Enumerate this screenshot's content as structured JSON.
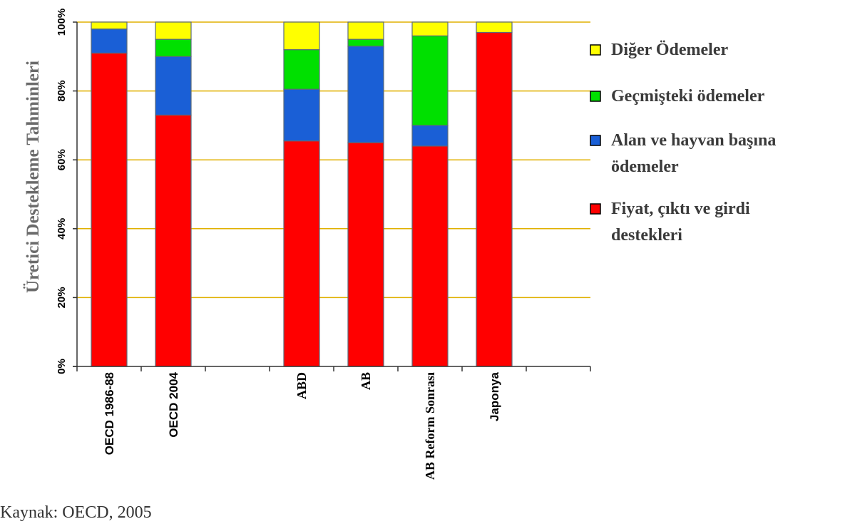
{
  "chart_data": {
    "type": "bar",
    "stacked": true,
    "title": "",
    "ylabel": "Üretici Destekleme Tahminleri",
    "xlabel": "",
    "ylim": [
      0,
      100
    ],
    "yticks": [
      "0%",
      "20%",
      "40%",
      "60%",
      "80%",
      "100%"
    ],
    "grid": true,
    "legend_position": "right",
    "categories": [
      "OECD 1986-88",
      "OECD 2004",
      "",
      "ABD",
      "AB",
      "AB Reform Sonrası",
      "Japonya",
      ""
    ],
    "series": [
      {
        "name": "Fiyat, çıktı ve girdi destekleri",
        "color": "#ff0000",
        "values": [
          91,
          73,
          null,
          65.5,
          65,
          64,
          97,
          null
        ]
      },
      {
        "name": "Alan ve hayvan başına ödemeler",
        "color": "#1a5fd6",
        "values": [
          7,
          17,
          null,
          15,
          28,
          6,
          0,
          null
        ]
      },
      {
        "name": "Geçmişteki ödemeler",
        "color": "#00e000",
        "values": [
          0,
          5,
          null,
          11.5,
          2,
          26,
          0,
          null
        ]
      },
      {
        "name": "Diğer Ödemeler",
        "color": "#ffff00",
        "values": [
          2,
          5,
          null,
          8,
          5,
          4,
          3,
          null
        ]
      }
    ],
    "legend": [
      {
        "lines": [
          "Diğer Ödemeler"
        ],
        "color": "#ffff00"
      },
      {
        "lines": [
          "Geçmişteki ödemeler"
        ],
        "color": "#00e000"
      },
      {
        "lines": [
          "Alan ve hayvan başına",
          "ödemeler"
        ],
        "color": "#1a5fd6"
      },
      {
        "lines": [
          "Fiyat, çıktı ve girdi",
          "destekleri"
        ],
        "color": "#ff0000"
      }
    ],
    "colors": {
      "grid": "#e0b000",
      "axis": "#333333",
      "bar_outline": "#5a6a7a"
    }
  },
  "source_text": "Kaynak: OECD, 2005"
}
